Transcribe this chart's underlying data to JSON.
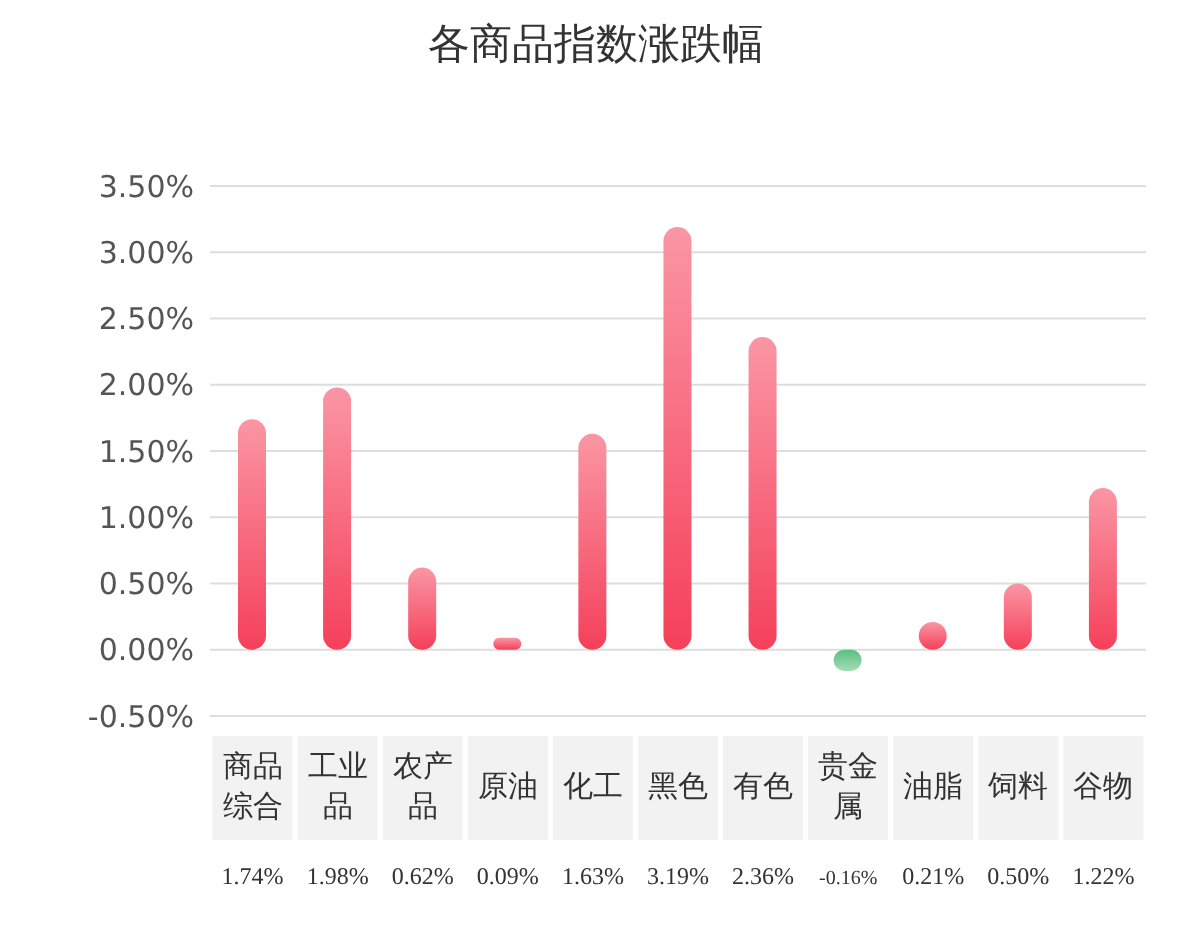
{
  "chart_data": {
    "type": "bar",
    "title": "各商品指数涨跌幅",
    "categories": [
      "商品综合",
      "工业品",
      "农产品",
      "原油",
      "化工",
      "黑色",
      "有色",
      "贵金属",
      "油脂",
      "饲料",
      "谷物"
    ],
    "values": [
      1.74,
      1.98,
      0.62,
      0.09,
      1.63,
      3.19,
      2.36,
      -0.16,
      0.21,
      0.5,
      1.22
    ],
    "value_labels": [
      "1.74%",
      "1.98%",
      "0.62%",
      "0.09%",
      "1.63%",
      "3.19%",
      "2.36%",
      "-0.16%",
      "0.21%",
      "0.50%",
      "1.22%"
    ],
    "colors": [
      "#f5405a",
      "#f5405a",
      "#f5405a",
      "#f5405a",
      "#f5405a",
      "#f5405a",
      "#f5405a",
      "#5cbf7e",
      "#f5405a",
      "#f5405a",
      "#f5405a"
    ],
    "ylim": [
      -0.5,
      3.5
    ],
    "yticks": [
      {
        "value": -0.5,
        "label": "-0.50%"
      },
      {
        "value": 0,
        "label": "0.00%"
      },
      {
        "value": 0.5,
        "label": "0.50%"
      },
      {
        "value": 1,
        "label": "1.00%"
      },
      {
        "value": 1.5,
        "label": "1.50%"
      },
      {
        "value": 2,
        "label": "2.00%"
      },
      {
        "value": 2.5,
        "label": "2.50%"
      },
      {
        "value": 3,
        "label": "3.00%"
      },
      {
        "value": 3.5,
        "label": "3.50%"
      }
    ],
    "grid": "y"
  }
}
